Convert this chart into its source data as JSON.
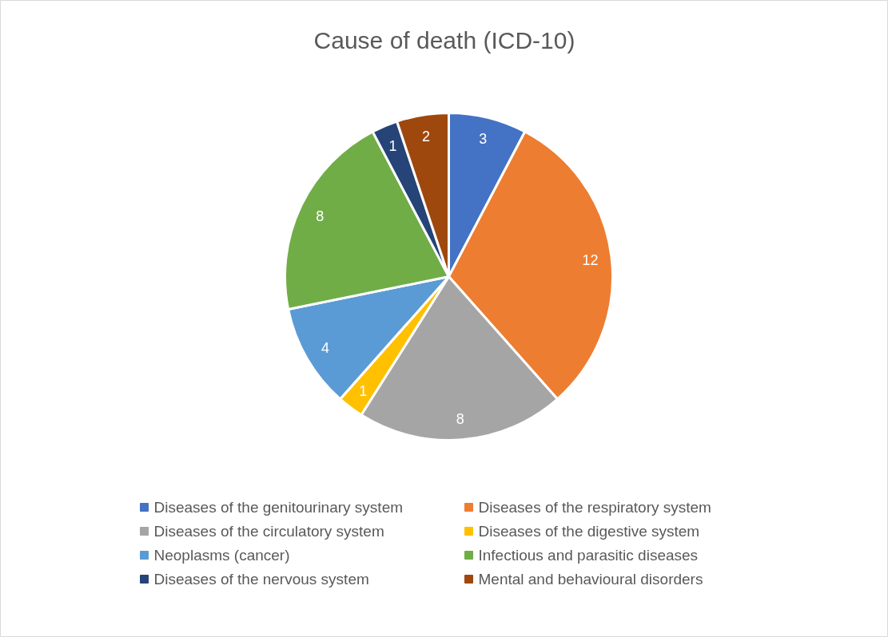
{
  "chart_data": {
    "type": "pie",
    "title": "Cause of death (ICD-10)",
    "categories": [
      "Diseases of the genitourinary system",
      "Diseases of the respiratory system",
      "Diseases of the circulatory system",
      "Diseases of the digestive system",
      "Neoplasms (cancer)",
      "Infectious and parasitic diseases",
      "Diseases of the nervous system",
      "Mental and behavioural disorders"
    ],
    "values": [
      3,
      12,
      8,
      1,
      4,
      8,
      1,
      2
    ],
    "colors": [
      "#4472c4",
      "#ed7d31",
      "#a5a5a5",
      "#ffc000",
      "#5b9bd5",
      "#70ad47",
      "#264478",
      "#9e480e"
    ],
    "data_labels": true,
    "legend": "bottom"
  }
}
